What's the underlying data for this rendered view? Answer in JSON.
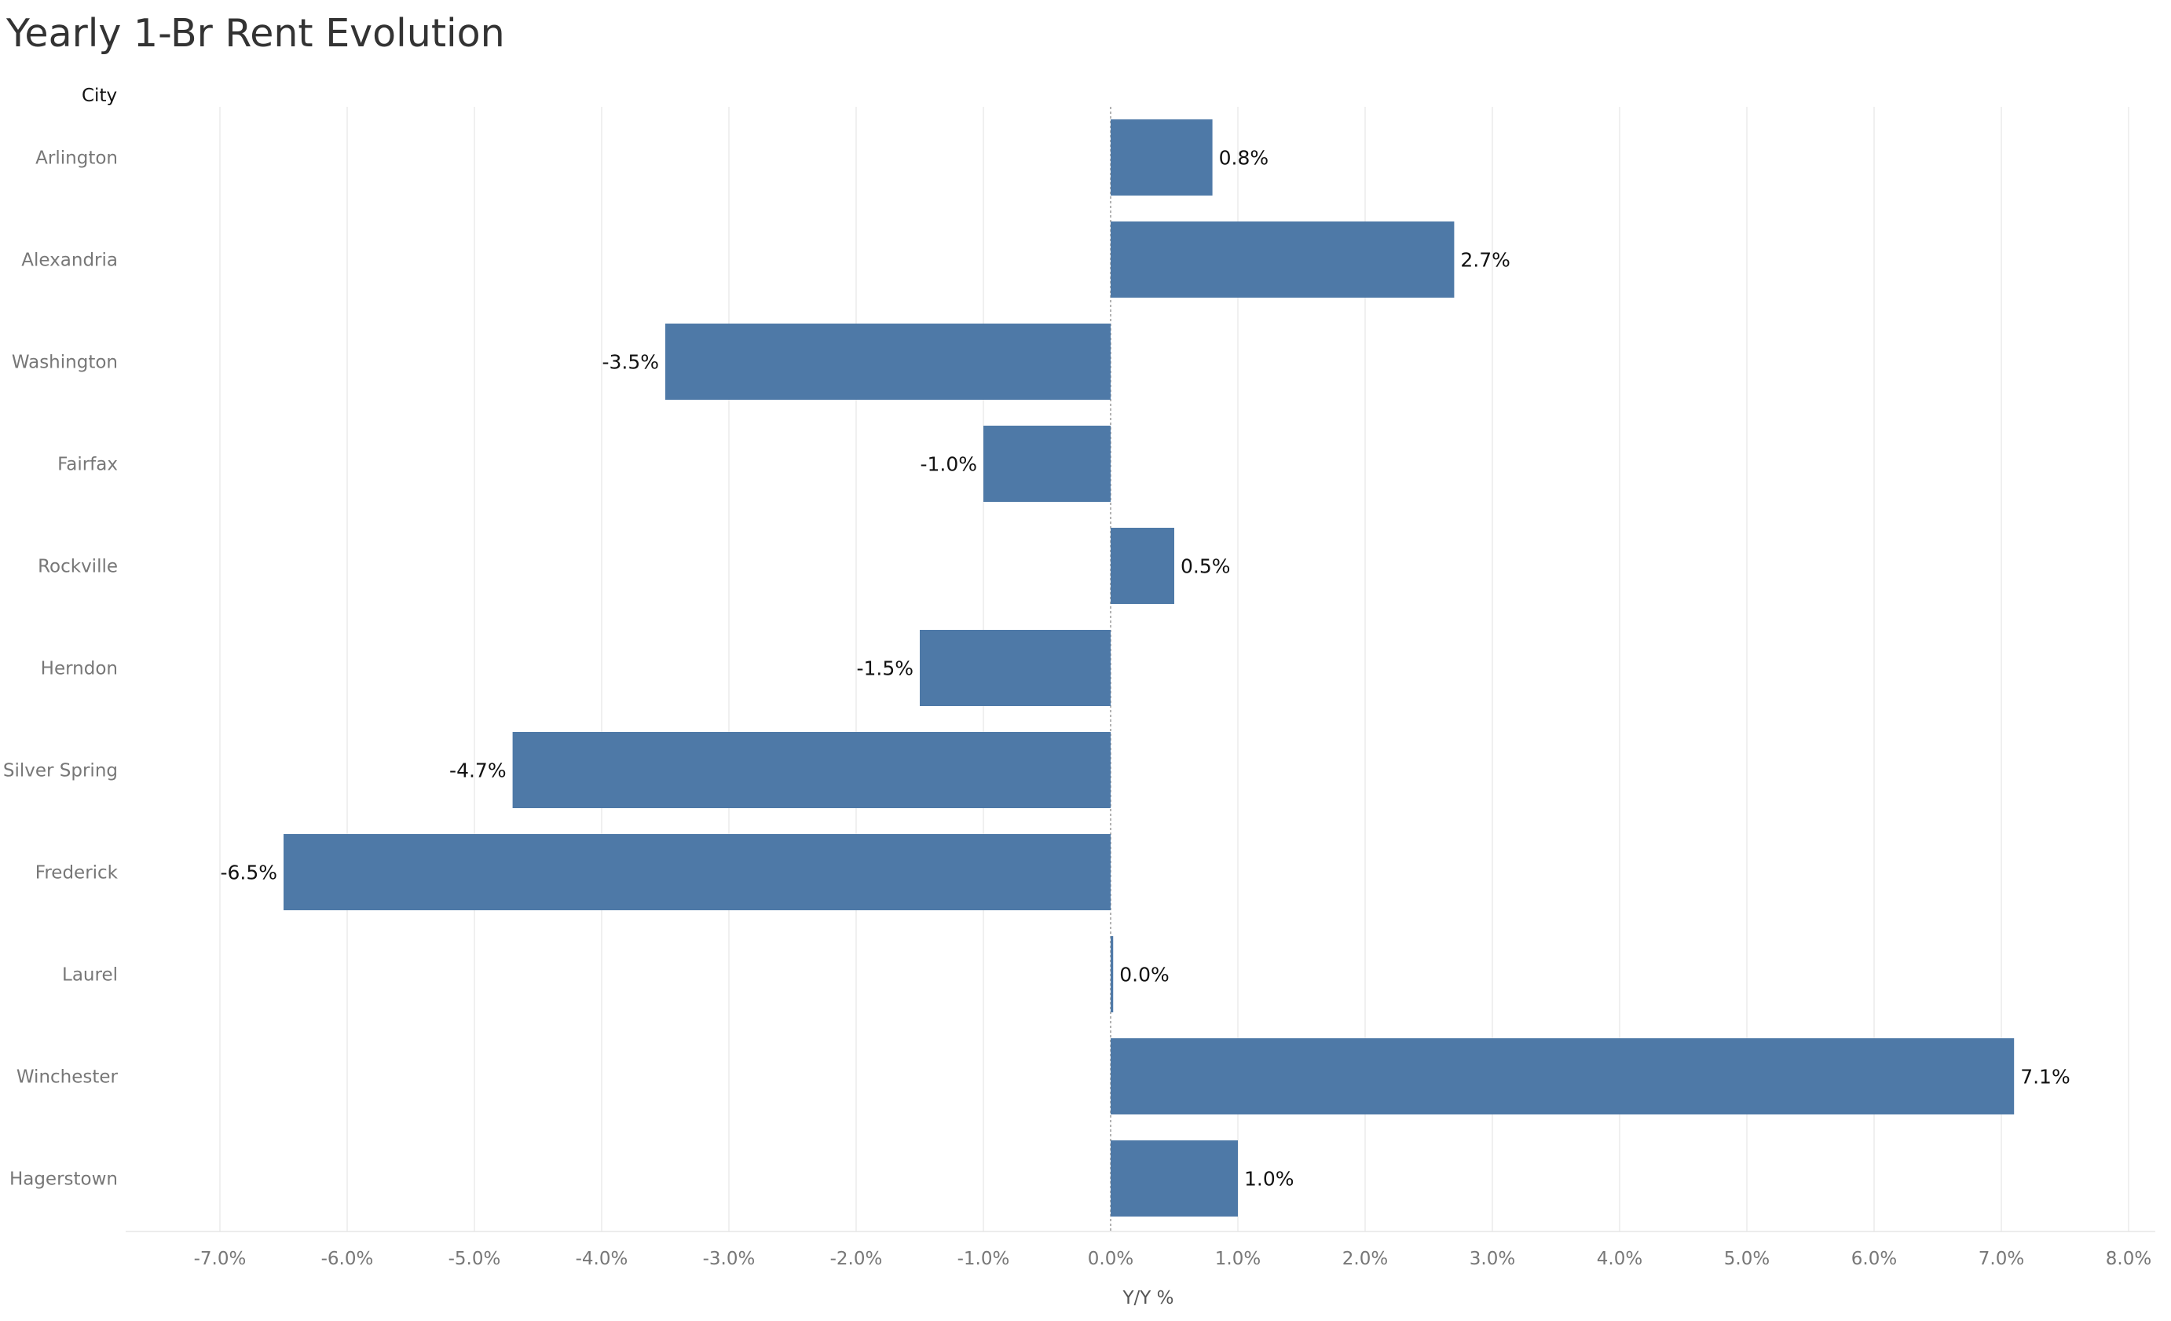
{
  "chart_data": {
    "type": "bar",
    "orientation": "horizontal",
    "title": "Yearly 1-Br Rent Evolution",
    "row_header": "City",
    "xlabel": "Y/Y %",
    "ylabel": "",
    "xlim": [
      -7.7,
      8.0
    ],
    "x_ticks": [
      -7,
      -6,
      -5,
      -4,
      -3,
      -2,
      -1,
      0,
      1,
      2,
      3,
      4,
      5,
      6,
      7,
      8
    ],
    "x_tick_labels": [
      "-7.0%",
      "-6.0%",
      "-5.0%",
      "-4.0%",
      "-3.0%",
      "-2.0%",
      "-1.0%",
      "0.0%",
      "1.0%",
      "2.0%",
      "3.0%",
      "4.0%",
      "5.0%",
      "6.0%",
      "7.0%",
      "8.0%"
    ],
    "grid": "vertical",
    "legend": "none",
    "bar_color": "#4e79a7",
    "categories": [
      "Arlington",
      "Alexandria",
      "Washington",
      "Fairfax",
      "Rockville",
      "Herndon",
      "Silver Spring",
      "Frederick",
      "Laurel",
      "Winchester",
      "Hagerstown"
    ],
    "values": [
      0.8,
      2.7,
      -3.5,
      -1.0,
      0.5,
      -1.5,
      -4.7,
      -6.5,
      0.02,
      7.1,
      1.0
    ],
    "value_labels": [
      "0.8%",
      "2.7%",
      "-3.5%",
      "-1.0%",
      "0.5%",
      "-1.5%",
      "-4.7%",
      "-6.5%",
      "0.0%",
      "7.1%",
      "1.0%"
    ]
  }
}
